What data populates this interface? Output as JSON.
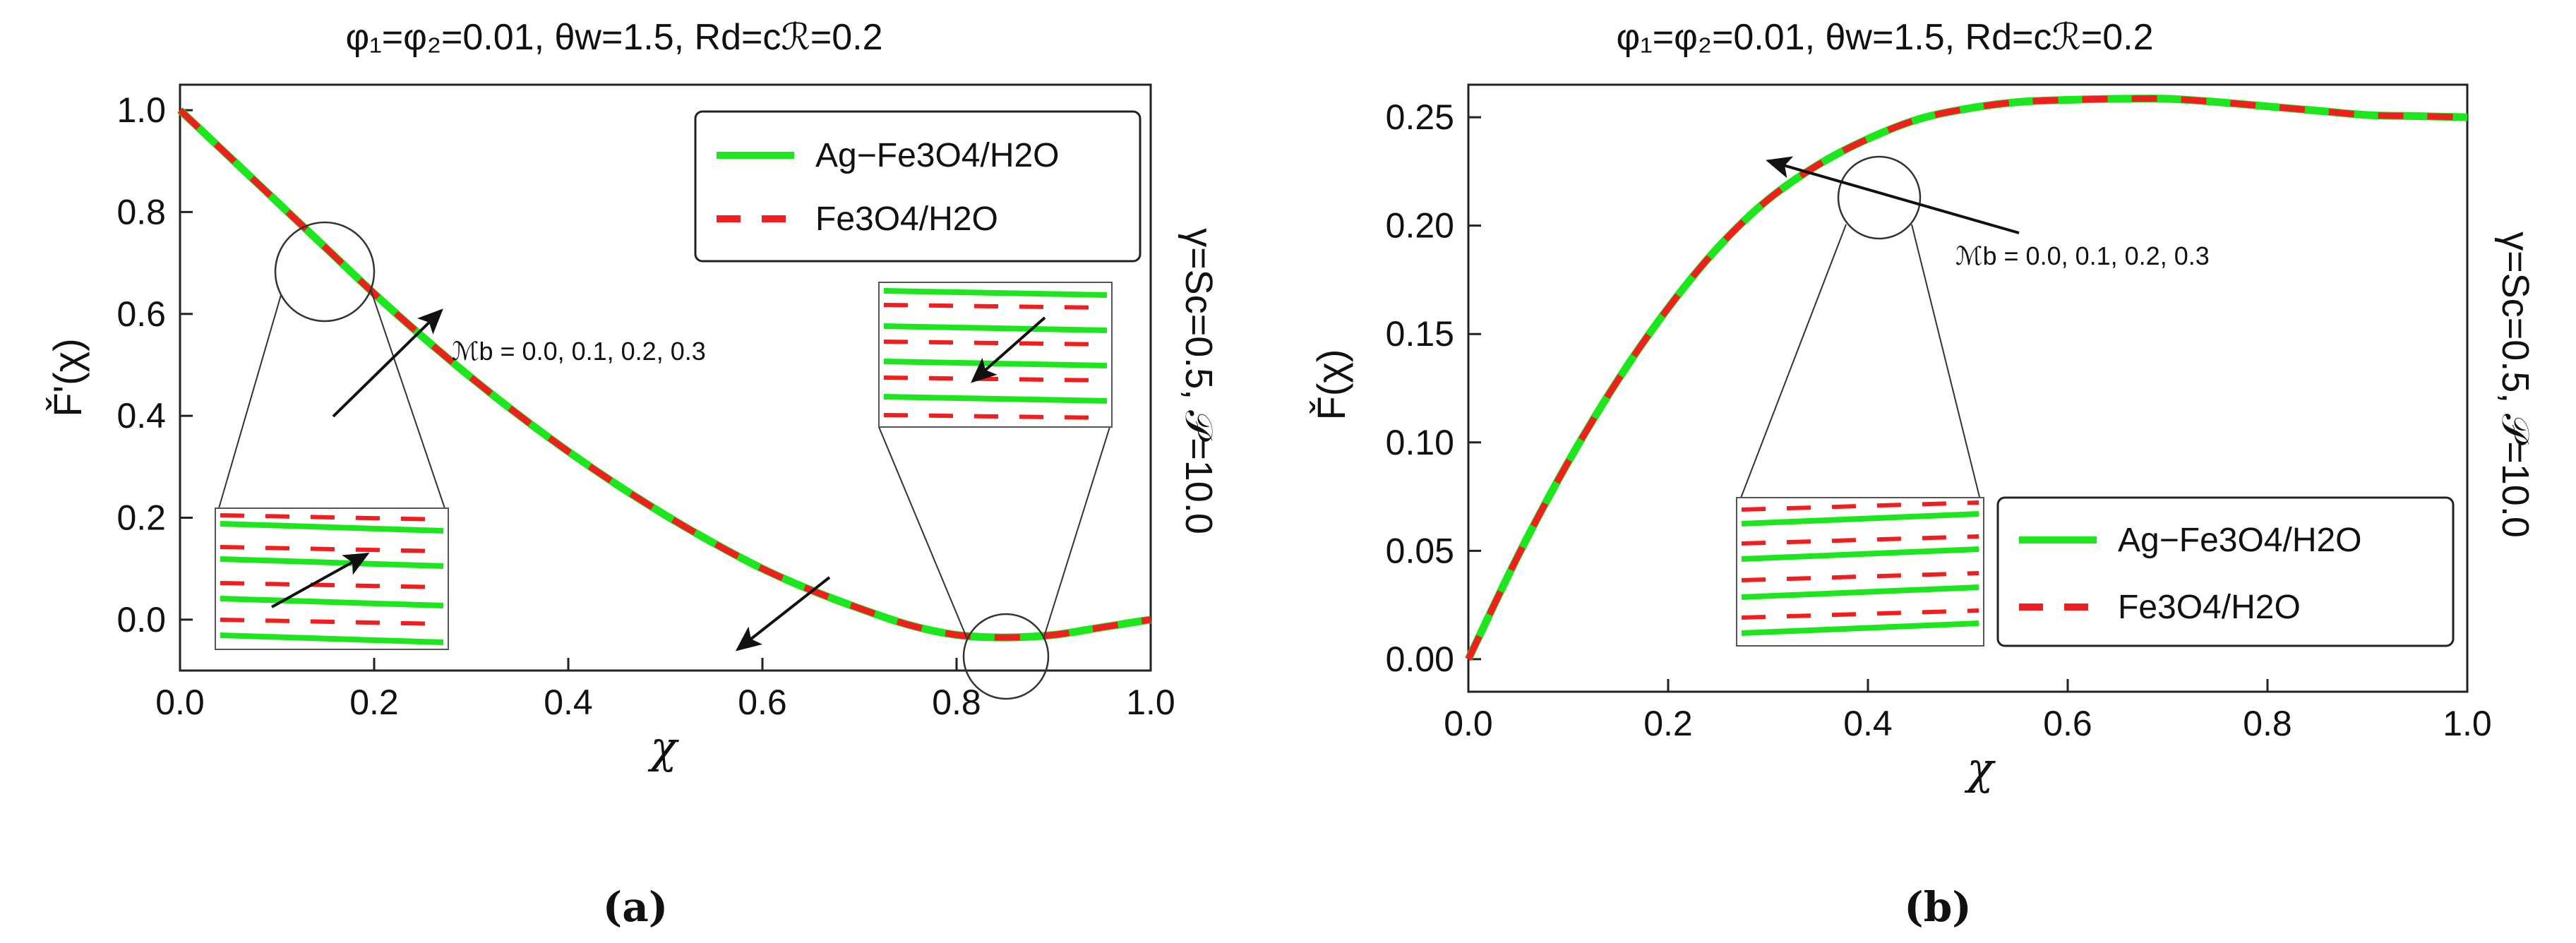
{
  "chart_data": [
    {
      "type": "line",
      "panel_label": "(a)",
      "title": "φ₁=φ₂=0.01, θw=1.5, Rd=cℛ=0.2",
      "xlabel": "χ",
      "ylabel": "F̌'(χ)",
      "side_label": "γ=Sc=0.5, 𝒫=10.0",
      "annotation": "ℳb = 0.0, 0.1, 0.2, 0.3",
      "xlim": [
        0.0,
        1.0
      ],
      "ylim": [
        -0.1,
        1.05
      ],
      "xticks": [
        "0.0",
        "0.2",
        "0.4",
        "0.6",
        "0.8",
        "1.0"
      ],
      "yticks": [
        "0.0",
        "0.2",
        "0.4",
        "0.6",
        "0.8",
        "1.0"
      ],
      "legend": [
        "Ag−Fe3O4/H2O",
        "Fe3O4/H2O"
      ],
      "series": [
        {
          "name": "Ag−Fe3O4/H2O",
          "color": "#1ee61e",
          "x": [
            0.0,
            0.05,
            0.1,
            0.15,
            0.2,
            0.25,
            0.3,
            0.35,
            0.4,
            0.45,
            0.5,
            0.55,
            0.6,
            0.65,
            0.7,
            0.75,
            0.8,
            0.85,
            0.9,
            0.95,
            1.0
          ],
          "y": [
            1.0,
            0.91,
            0.82,
            0.73,
            0.64,
            0.555,
            0.475,
            0.4,
            0.33,
            0.265,
            0.205,
            0.15,
            0.1,
            0.058,
            0.022,
            -0.01,
            -0.03,
            -0.035,
            -0.03,
            -0.015,
            0.0
          ]
        },
        {
          "name": "Fe3O4/H2O",
          "color": "#f01e1e",
          "x": [
            0.0,
            0.05,
            0.1,
            0.15,
            0.2,
            0.25,
            0.3,
            0.35,
            0.4,
            0.45,
            0.5,
            0.55,
            0.6,
            0.65,
            0.7,
            0.75,
            0.8,
            0.85,
            0.9,
            0.95,
            1.0
          ],
          "y": [
            1.0,
            0.91,
            0.82,
            0.73,
            0.64,
            0.555,
            0.475,
            0.4,
            0.33,
            0.265,
            0.205,
            0.15,
            0.1,
            0.058,
            0.022,
            -0.01,
            -0.03,
            -0.035,
            -0.03,
            -0.015,
            0.0
          ]
        }
      ]
    },
    {
      "type": "line",
      "panel_label": "(b)",
      "title": "φ₁=φ₂=0.01, θw=1.5, Rd=cℛ=0.2",
      "xlabel": "χ",
      "ylabel": "F̌(χ)",
      "side_label": "γ=Sc=0.5, 𝒫=10.0",
      "annotation": "ℳb = 0.0, 0.1, 0.2, 0.3",
      "xlim": [
        0.0,
        1.0
      ],
      "ylim": [
        -0.015,
        0.265
      ],
      "xticks": [
        "0.0",
        "0.2",
        "0.4",
        "0.6",
        "0.8",
        "1.0"
      ],
      "yticks": [
        "0.00",
        "0.05",
        "0.10",
        "0.15",
        "0.20",
        "0.25"
      ],
      "legend": [
        "Ag−Fe3O4/H2O",
        "Fe3O4/H2O"
      ],
      "series": [
        {
          "name": "Ag−Fe3O4/H2O",
          "color": "#1ee61e",
          "x": [
            0.0,
            0.05,
            0.1,
            0.15,
            0.2,
            0.25,
            0.3,
            0.35,
            0.4,
            0.45,
            0.5,
            0.55,
            0.6,
            0.65,
            0.7,
            0.75,
            0.8,
            0.85,
            0.9,
            0.95,
            1.0
          ],
          "y": [
            0.0,
            0.048,
            0.091,
            0.129,
            0.162,
            0.19,
            0.212,
            0.228,
            0.24,
            0.249,
            0.254,
            0.257,
            0.258,
            0.2585,
            0.2585,
            0.257,
            0.255,
            0.253,
            0.251,
            0.2505,
            0.25
          ]
        },
        {
          "name": "Fe3O4/H2O",
          "color": "#f01e1e",
          "x": [
            0.0,
            0.05,
            0.1,
            0.15,
            0.2,
            0.25,
            0.3,
            0.35,
            0.4,
            0.45,
            0.5,
            0.55,
            0.6,
            0.65,
            0.7,
            0.75,
            0.8,
            0.85,
            0.9,
            0.95,
            1.0
          ],
          "y": [
            0.0,
            0.048,
            0.091,
            0.129,
            0.162,
            0.19,
            0.212,
            0.228,
            0.24,
            0.249,
            0.254,
            0.257,
            0.258,
            0.2585,
            0.2585,
            0.257,
            0.255,
            0.253,
            0.251,
            0.2505,
            0.25
          ]
        }
      ]
    }
  ]
}
